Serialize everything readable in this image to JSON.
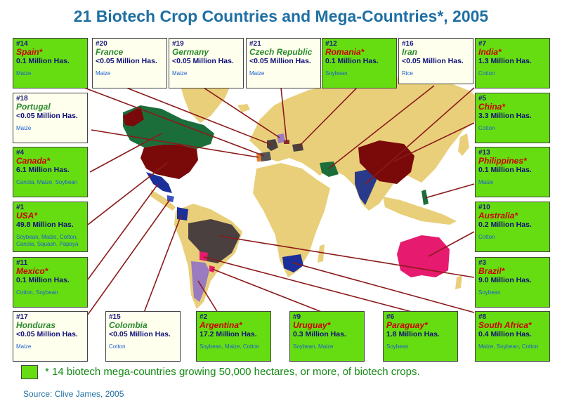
{
  "title": "21 Biotech Crop Countries and Mega-Countries*, 2005",
  "legend_text": "* 14 biotech mega-countries growing 50,000 hectares, or more, of biotech crops.",
  "source": "Source: Clive James, 2005",
  "colors": {
    "mega_box": "#66dd11",
    "minor_box": "#ffffee",
    "land": "#e9cf7a",
    "leader_line": "#8b1a1a",
    "title": "#1f6fa3"
  },
  "boxes": [
    {
      "rank": "#14",
      "name": "Spain*",
      "area": "0.1 Million Has.",
      "crops": "Maize",
      "mega": true
    },
    {
      "rank": "#20",
      "name": "France",
      "area": "<0.05 Million Has.",
      "crops": "Maize",
      "mega": false
    },
    {
      "rank": "#19",
      "name": "Germany",
      "area": "<0.05 Million Has.",
      "crops": "Maize",
      "mega": false
    },
    {
      "rank": "#21",
      "name": "Czech Republic",
      "area": "<0.05 Million Has.",
      "crops": "Maize",
      "mega": false
    },
    {
      "rank": "#12",
      "name": "Romania*",
      "area": "0.1 Million Has.",
      "crops": "Soybean",
      "mega": true
    },
    {
      "rank": "#16",
      "name": "Iran",
      "area": "<0.05 Million Has.",
      "crops": "Rice",
      "mega": false
    },
    {
      "rank": "#7",
      "name": "India*",
      "area": "1.3 Million Has.",
      "crops": "Cotton",
      "mega": true
    },
    {
      "rank": "#18",
      "name": "Portugal",
      "area": "<0.05 Million Has.",
      "crops": "Maize",
      "mega": false
    },
    {
      "rank": "#5",
      "name": "China*",
      "area": "3.3 Million Has.",
      "crops": "Cotton",
      "mega": true
    },
    {
      "rank": "#4",
      "name": "Canada*",
      "area": "6.1 Million Has.",
      "crops": "Canola, Maize, Soybean",
      "mega": true
    },
    {
      "rank": "#13",
      "name": "Philippines*",
      "area": "0.1 Million Has.",
      "crops": "Maize",
      "mega": true
    },
    {
      "rank": "#1",
      "name": "USA*",
      "area": "49.8 Million Has.",
      "crops": "Soybean, Maize, Cotton, Canola, Squash, Papaya",
      "mega": true
    },
    {
      "rank": "#10",
      "name": "Australia*",
      "area": "0.2 Million Has.",
      "crops": "Cotton",
      "mega": true
    },
    {
      "rank": "#11",
      "name": "Mexico*",
      "area": "0.1 Million Has.",
      "crops": "Cotton, Soybean",
      "mega": true
    },
    {
      "rank": "#3",
      "name": "Brazil*",
      "area": "9.0 Million Has.",
      "crops": "Soybean",
      "mega": true
    },
    {
      "rank": "#17",
      "name": "Honduras",
      "area": "<0.05 Million Has.",
      "crops": "Maize",
      "mega": false
    },
    {
      "rank": "#15",
      "name": "Colombia",
      "area": "<0.05 Million Has.",
      "crops": "Cotton",
      "mega": false
    },
    {
      "rank": "#2",
      "name": "Argentina*",
      "area": "17.2  Million Has.",
      "crops": "Soybean, Maize, Cotton",
      "mega": true
    },
    {
      "rank": "#9",
      "name": "Uruguay*",
      "area": "0.3 Million Has.",
      "crops": "Soybean, Maize",
      "mega": true
    },
    {
      "rank": "#6",
      "name": "Paraguay*",
      "area": "1.8  Million Has.",
      "crops": "Soybean",
      "mega": true
    },
    {
      "rank": "#8",
      "name": "South Africa*",
      "area": "0.4 Million Has.",
      "crops": "Maize, Soybean, Cotton",
      "mega": true
    }
  ]
}
